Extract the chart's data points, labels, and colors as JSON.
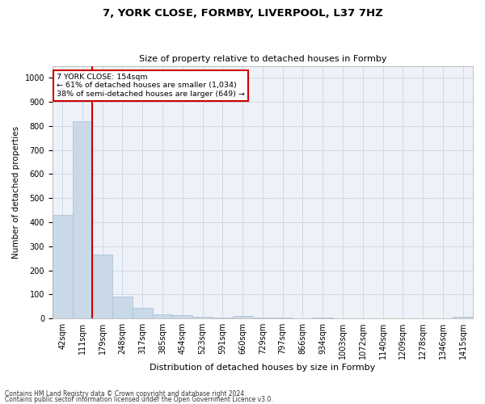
{
  "title": "7, YORK CLOSE, FORMBY, LIVERPOOL, L37 7HZ",
  "subtitle": "Size of property relative to detached houses in Formby",
  "xlabel": "Distribution of detached houses by size in Formby",
  "ylabel": "Number of detached properties",
  "footnote1": "Contains HM Land Registry data © Crown copyright and database right 2024.",
  "footnote2": "Contains public sector information licensed under the Open Government Licence v3.0.",
  "bar_labels": [
    "42sqm",
    "111sqm",
    "179sqm",
    "248sqm",
    "317sqm",
    "385sqm",
    "454sqm",
    "523sqm",
    "591sqm",
    "660sqm",
    "729sqm",
    "797sqm",
    "866sqm",
    "934sqm",
    "1003sqm",
    "1072sqm",
    "1140sqm",
    "1209sqm",
    "1278sqm",
    "1346sqm",
    "1415sqm"
  ],
  "bar_values": [
    430,
    820,
    265,
    90,
    44,
    18,
    13,
    7,
    2,
    12,
    5,
    2,
    0,
    4,
    0,
    0,
    0,
    0,
    0,
    0,
    6
  ],
  "bar_color": "#c9d9e8",
  "bar_edge_color": "#a8bfd0",
  "vline_color": "#cc0000",
  "annotation_text": "7 YORK CLOSE: 154sqm\n← 61% of detached houses are smaller (1,034)\n38% of semi-detached houses are larger (649) →",
  "annotation_box_color": "#ffffff",
  "annotation_box_edge": "#cc0000",
  "ylim": [
    0,
    1050
  ],
  "yticks": [
    0,
    100,
    200,
    300,
    400,
    500,
    600,
    700,
    800,
    900,
    1000
  ],
  "grid_color": "#d0d8e8",
  "background_color": "#eef2f8",
  "title_fontsize": 9.5,
  "subtitle_fontsize": 8,
  "xlabel_fontsize": 8,
  "ylabel_fontsize": 7.5,
  "tick_fontsize": 7,
  "annot_fontsize": 6.8,
  "footnote_fontsize": 5.5
}
